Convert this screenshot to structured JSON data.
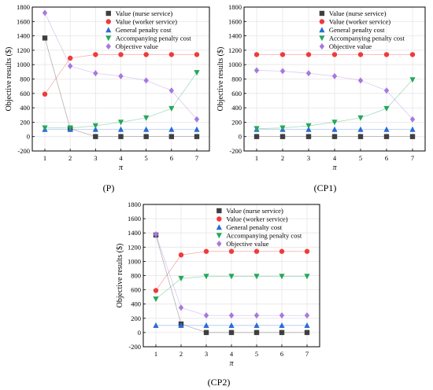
{
  "common": {
    "ylabel": "Objective results ($)",
    "xlabel": "π",
    "x": [
      1,
      2,
      3,
      4,
      5,
      6,
      7
    ],
    "ylim": [
      -200,
      1800
    ],
    "yticks": [
      -200,
      0,
      200,
      400,
      600,
      800,
      1000,
      1200,
      1400,
      1600,
      1800
    ],
    "legend_labels": [
      "Value (nurse service)",
      "Value (worker service)",
      "General penalty cost",
      "Accompanying penalty cost",
      "Objective value"
    ],
    "series_colors": [
      "#3f3f3f",
      "#ef3b3b",
      "#2a6bd6",
      "#24a85a",
      "#a878e0"
    ],
    "series_markers": [
      "square",
      "circle",
      "triangle-up",
      "triangle-down",
      "diamond"
    ]
  },
  "chart_data": [
    {
      "type": "line",
      "caption": "(P)",
      "x": [
        1,
        2,
        3,
        4,
        5,
        6,
        7
      ],
      "xlabel": "π",
      "ylabel": "Objective results ($)",
      "ylim": [
        -200,
        1800
      ],
      "grid": true,
      "legend": "top-right",
      "series": [
        {
          "name": "Value (nurse service)",
          "values": [
            1370,
            110,
            0,
            0,
            0,
            0,
            0
          ]
        },
        {
          "name": "Value (worker service)",
          "values": [
            590,
            1090,
            1140,
            1140,
            1140,
            1140,
            1140
          ]
        },
        {
          "name": "General penalty cost",
          "values": [
            100,
            100,
            100,
            100,
            100,
            100,
            100
          ]
        },
        {
          "name": "Accompanying penalty cost",
          "values": [
            120,
            120,
            150,
            200,
            260,
            390,
            890
          ]
        },
        {
          "name": "Objective value",
          "values": [
            1720,
            980,
            880,
            840,
            780,
            640,
            240
          ]
        }
      ]
    },
    {
      "type": "line",
      "caption": "(CP1)",
      "x": [
        1,
        2,
        3,
        4,
        5,
        6,
        7
      ],
      "xlabel": "π",
      "ylabel": "Objective results ($)",
      "ylim": [
        -200,
        1800
      ],
      "grid": true,
      "legend": "top-right",
      "series": [
        {
          "name": "Value (nurse service)",
          "values": [
            0,
            0,
            0,
            0,
            0,
            0,
            0
          ]
        },
        {
          "name": "Value (worker service)",
          "values": [
            1140,
            1140,
            1140,
            1140,
            1140,
            1140,
            1140
          ]
        },
        {
          "name": "General penalty cost",
          "values": [
            100,
            100,
            100,
            100,
            100,
            100,
            100
          ]
        },
        {
          "name": "Accompanying penalty cost",
          "values": [
            110,
            120,
            150,
            200,
            260,
            390,
            790
          ]
        },
        {
          "name": "Objective value",
          "values": [
            920,
            910,
            880,
            840,
            780,
            640,
            240
          ]
        }
      ]
    },
    {
      "type": "line",
      "caption": "(CP2)",
      "x": [
        1,
        2,
        3,
        4,
        5,
        6,
        7
      ],
      "xlabel": "π",
      "ylabel": "Objective results ($)",
      "ylim": [
        -200,
        1800
      ],
      "grid": true,
      "legend": "top-right",
      "series": [
        {
          "name": "Value (nurse service)",
          "values": [
            1370,
            120,
            0,
            0,
            0,
            0,
            0
          ]
        },
        {
          "name": "Value (worker service)",
          "values": [
            590,
            1090,
            1140,
            1140,
            1140,
            1140,
            1140
          ]
        },
        {
          "name": "General penalty cost",
          "values": [
            100,
            100,
            100,
            100,
            100,
            100,
            100
          ]
        },
        {
          "name": "Accompanying penalty cost",
          "values": [
            470,
            760,
            790,
            790,
            790,
            790,
            790
          ]
        },
        {
          "name": "Objective value",
          "values": [
            1380,
            350,
            240,
            240,
            240,
            240,
            240
          ]
        }
      ]
    }
  ]
}
